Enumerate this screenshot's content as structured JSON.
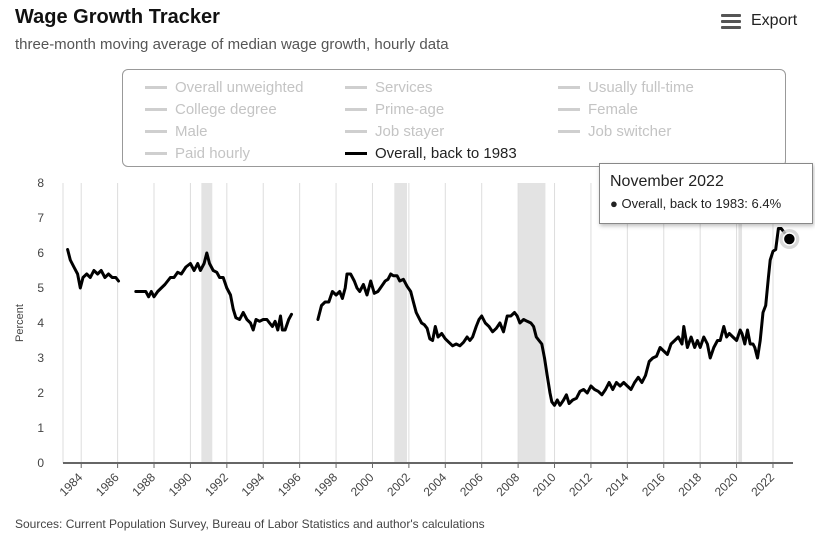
{
  "title": "Wage Growth Tracker",
  "subtitle": "three-month moving average of median wage growth, hourly data",
  "export_label": "Export",
  "export_icon": "hamburger-menu-icon",
  "legend": [
    {
      "label": "Overall unweighted",
      "active": false
    },
    {
      "label": "Services",
      "active": false
    },
    {
      "label": "Usually full-time",
      "active": false
    },
    {
      "label": "College degree",
      "active": false
    },
    {
      "label": "Prime-age",
      "active": false
    },
    {
      "label": "Female",
      "active": false
    },
    {
      "label": "Male",
      "active": false
    },
    {
      "label": "Job stayer",
      "active": false
    },
    {
      "label": "Job switcher",
      "active": false
    },
    {
      "label": "Paid hourly",
      "active": false
    },
    {
      "label": "Overall, back to 1983",
      "active": true
    }
  ],
  "tooltip": {
    "title": "November 2022",
    "line": "● Overall, back to 1983: 6.4%"
  },
  "source": "Sources: Current Population Survey, Bureau of Labor Statistics and author's calculations",
  "chart_data": {
    "type": "line",
    "title": "Wage Growth Tracker",
    "subtitle": "three-month moving average of median wage growth, hourly data",
    "ylabel": "Percent",
    "xlabel": "",
    "ylim": [
      0,
      8
    ],
    "yticks": [
      0,
      1,
      2,
      3,
      4,
      5,
      6,
      7,
      8
    ],
    "xlim": [
      1983.0,
      2023.1
    ],
    "xticks": [
      1984,
      1986,
      1988,
      1990,
      1992,
      1994,
      1996,
      1998,
      2000,
      2002,
      2004,
      2006,
      2008,
      2010,
      2012,
      2014,
      2016,
      2018,
      2020,
      2022
    ],
    "grid": "vertical",
    "recession_bands": [
      [
        1990.6,
        1991.2
      ],
      [
        2001.2,
        2001.9
      ],
      [
        2008.0,
        2009.5
      ],
      [
        2020.1,
        2020.3
      ]
    ],
    "recession_color": "#e3e3e3",
    "line_color": "#000000",
    "series": [
      {
        "name": "Overall, back to 1983",
        "segments": [
          [
            [
              1983.25,
              6.1
            ],
            [
              1983.4,
              5.8
            ],
            [
              1983.6,
              5.6
            ],
            [
              1983.8,
              5.4
            ],
            [
              1983.95,
              5.0
            ],
            [
              1984.1,
              5.3
            ],
            [
              1984.3,
              5.4
            ],
            [
              1984.5,
              5.3
            ],
            [
              1984.7,
              5.5
            ],
            [
              1984.9,
              5.4
            ],
            [
              1985.1,
              5.5
            ],
            [
              1985.3,
              5.3
            ],
            [
              1985.5,
              5.4
            ],
            [
              1985.7,
              5.3
            ],
            [
              1985.9,
              5.3
            ],
            [
              1986.05,
              5.2
            ]
          ],
          [
            [
              1987.0,
              4.9
            ],
            [
              1987.3,
              4.9
            ],
            [
              1987.55,
              4.9
            ],
            [
              1987.7,
              4.75
            ],
            [
              1987.85,
              4.9
            ],
            [
              1988.0,
              4.75
            ],
            [
              1988.2,
              4.9
            ],
            [
              1988.4,
              5.0
            ],
            [
              1988.6,
              5.1
            ],
            [
              1988.9,
              5.3
            ],
            [
              1989.1,
              5.3
            ],
            [
              1989.3,
              5.45
            ],
            [
              1989.5,
              5.4
            ],
            [
              1989.75,
              5.6
            ],
            [
              1990.0,
              5.7
            ],
            [
              1990.2,
              5.5
            ],
            [
              1990.4,
              5.7
            ],
            [
              1990.55,
              5.5
            ],
            [
              1990.75,
              5.7
            ],
            [
              1990.9,
              6.0
            ],
            [
              1991.05,
              5.7
            ],
            [
              1991.25,
              5.5
            ],
            [
              1991.45,
              5.45
            ],
            [
              1991.6,
              5.3
            ],
            [
              1991.8,
              5.3
            ],
            [
              1992.0,
              5.0
            ],
            [
              1992.2,
              4.8
            ],
            [
              1992.35,
              4.4
            ],
            [
              1992.5,
              4.15
            ],
            [
              1992.7,
              4.1
            ],
            [
              1992.9,
              4.3
            ],
            [
              1993.1,
              4.1
            ],
            [
              1993.3,
              4.0
            ],
            [
              1993.45,
              3.8
            ],
            [
              1993.6,
              4.1
            ],
            [
              1993.8,
              4.05
            ],
            [
              1994.0,
              4.1
            ],
            [
              1994.2,
              4.1
            ],
            [
              1994.35,
              4.0
            ],
            [
              1994.5,
              3.9
            ],
            [
              1994.65,
              4.05
            ],
            [
              1994.8,
              3.8
            ],
            [
              1994.95,
              4.2
            ],
            [
              1995.05,
              3.8
            ],
            [
              1995.2,
              3.8
            ],
            [
              1995.4,
              4.1
            ],
            [
              1995.55,
              4.25
            ]
          ],
          [
            [
              1997.0,
              4.1
            ],
            [
              1997.2,
              4.5
            ],
            [
              1997.4,
              4.6
            ],
            [
              1997.6,
              4.6
            ],
            [
              1997.8,
              4.9
            ],
            [
              1998.0,
              4.8
            ],
            [
              1998.2,
              4.9
            ],
            [
              1998.35,
              4.7
            ],
            [
              1998.5,
              5.0
            ],
            [
              1998.6,
              5.4
            ],
            [
              1998.8,
              5.4
            ],
            [
              1999.0,
              5.2
            ],
            [
              1999.15,
              5.0
            ],
            [
              1999.3,
              4.9
            ],
            [
              1999.5,
              5.1
            ],
            [
              1999.7,
              4.8
            ],
            [
              1999.9,
              5.2
            ],
            [
              2000.1,
              4.85
            ],
            [
              2000.3,
              4.9
            ],
            [
              2000.5,
              5.05
            ],
            [
              2000.7,
              5.2
            ],
            [
              2000.85,
              5.25
            ],
            [
              2001.0,
              5.4
            ],
            [
              2001.15,
              5.35
            ],
            [
              2001.35,
              5.35
            ],
            [
              2001.5,
              5.2
            ],
            [
              2001.7,
              5.25
            ],
            [
              2001.9,
              5.05
            ],
            [
              2002.1,
              4.9
            ],
            [
              2002.25,
              4.6
            ],
            [
              2002.4,
              4.3
            ],
            [
              2002.55,
              4.15
            ],
            [
              2002.7,
              4.0
            ],
            [
              2002.85,
              3.95
            ],
            [
              2003.0,
              3.85
            ],
            [
              2003.15,
              3.55
            ],
            [
              2003.3,
              3.5
            ],
            [
              2003.45,
              3.9
            ],
            [
              2003.6,
              3.6
            ],
            [
              2003.8,
              3.7
            ],
            [
              2004.0,
              3.55
            ],
            [
              2004.2,
              3.45
            ],
            [
              2004.4,
              3.35
            ],
            [
              2004.6,
              3.4
            ],
            [
              2004.8,
              3.35
            ],
            [
              2005.0,
              3.45
            ],
            [
              2005.2,
              3.6
            ],
            [
              2005.35,
              3.5
            ],
            [
              2005.5,
              3.6
            ],
            [
              2005.7,
              3.9
            ],
            [
              2005.85,
              4.1
            ],
            [
              2006.0,
              4.2
            ],
            [
              2006.2,
              4.0
            ],
            [
              2006.4,
              3.9
            ],
            [
              2006.6,
              3.75
            ],
            [
              2006.8,
              3.85
            ],
            [
              2007.0,
              4.0
            ],
            [
              2007.2,
              3.75
            ],
            [
              2007.4,
              4.2
            ],
            [
              2007.6,
              4.2
            ],
            [
              2007.8,
              4.3
            ],
            [
              2007.95,
              4.2
            ],
            [
              2008.1,
              4.0
            ],
            [
              2008.3,
              4.1
            ],
            [
              2008.5,
              4.05
            ],
            [
              2008.7,
              4.0
            ],
            [
              2008.85,
              3.9
            ],
            [
              2009.0,
              3.6
            ],
            [
              2009.15,
              3.5
            ],
            [
              2009.3,
              3.4
            ],
            [
              2009.45,
              3.0
            ],
            [
              2009.6,
              2.5
            ],
            [
              2009.75,
              2.0
            ],
            [
              2009.85,
              1.75
            ],
            [
              2010.0,
              1.65
            ],
            [
              2010.15,
              1.8
            ],
            [
              2010.3,
              1.65
            ],
            [
              2010.5,
              1.8
            ],
            [
              2010.65,
              1.95
            ],
            [
              2010.8,
              1.7
            ],
            [
              2011.0,
              1.8
            ],
            [
              2011.2,
              1.85
            ],
            [
              2011.4,
              2.05
            ],
            [
              2011.6,
              2.1
            ],
            [
              2011.8,
              2.0
            ],
            [
              2012.0,
              2.2
            ],
            [
              2012.2,
              2.1
            ],
            [
              2012.4,
              2.05
            ],
            [
              2012.6,
              1.95
            ],
            [
              2012.8,
              2.1
            ],
            [
              2013.0,
              2.3
            ],
            [
              2013.2,
              2.1
            ],
            [
              2013.4,
              2.3
            ],
            [
              2013.6,
              2.2
            ],
            [
              2013.8,
              2.3
            ],
            [
              2014.0,
              2.2
            ],
            [
              2014.2,
              2.1
            ],
            [
              2014.4,
              2.3
            ],
            [
              2014.6,
              2.45
            ],
            [
              2014.8,
              2.3
            ],
            [
              2015.0,
              2.5
            ],
            [
              2015.2,
              2.9
            ],
            [
              2015.4,
              3.0
            ],
            [
              2015.6,
              3.05
            ],
            [
              2015.8,
              3.3
            ],
            [
              2016.0,
              3.2
            ],
            [
              2016.2,
              3.1
            ],
            [
              2016.4,
              3.4
            ],
            [
              2016.6,
              3.5
            ],
            [
              2016.8,
              3.6
            ],
            [
              2017.0,
              3.4
            ],
            [
              2017.1,
              3.9
            ],
            [
              2017.3,
              3.3
            ],
            [
              2017.5,
              3.6
            ],
            [
              2017.7,
              3.3
            ],
            [
              2017.85,
              3.5
            ],
            [
              2018.0,
              3.3
            ],
            [
              2018.2,
              3.6
            ],
            [
              2018.4,
              3.4
            ],
            [
              2018.55,
              3.0
            ],
            [
              2018.75,
              3.3
            ],
            [
              2018.95,
              3.5
            ],
            [
              2019.1,
              3.5
            ],
            [
              2019.3,
              3.9
            ],
            [
              2019.45,
              3.6
            ],
            [
              2019.6,
              3.7
            ],
            [
              2019.8,
              3.6
            ],
            [
              2020.0,
              3.5
            ],
            [
              2020.2,
              3.8
            ],
            [
              2020.3,
              3.7
            ],
            [
              2020.45,
              3.4
            ],
            [
              2020.6,
              3.8
            ],
            [
              2020.75,
              3.4
            ],
            [
              2020.9,
              3.4
            ],
            [
              2021.0,
              3.3
            ],
            [
              2021.15,
              3.0
            ],
            [
              2021.3,
              3.5
            ],
            [
              2021.45,
              4.3
            ],
            [
              2021.6,
              4.5
            ],
            [
              2021.75,
              5.3
            ],
            [
              2021.85,
              5.8
            ],
            [
              2022.0,
              6.05
            ],
            [
              2022.15,
              6.1
            ],
            [
              2022.3,
              6.7
            ],
            [
              2022.45,
              6.7
            ],
            [
              2022.6,
              6.6
            ],
            [
              2022.75,
              6.5
            ],
            [
              2022.9,
              6.4
            ]
          ]
        ]
      }
    ],
    "highlight_point": {
      "x": 2022.9,
      "y": 6.4,
      "label": "November 2022"
    }
  }
}
